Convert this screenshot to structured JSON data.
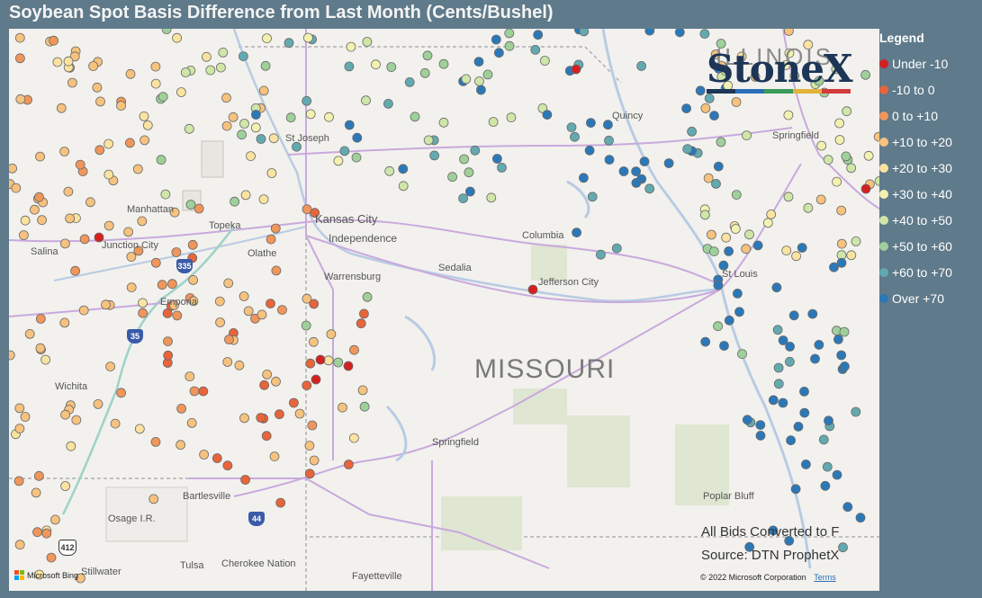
{
  "title": "Soybean Spot Basis Difference from Last Month (Cents/Bushel)",
  "legend": {
    "title": "Legend",
    "items": [
      {
        "label": "Under -10",
        "color": "#d62020"
      },
      {
        "label": "-10 to 0",
        "color": "#e8643a"
      },
      {
        "label": "0 to +10",
        "color": "#f0965a"
      },
      {
        "label": "+10 to +20",
        "color": "#f6c27e"
      },
      {
        "label": "+20 to +30",
        "color": "#fae3a0"
      },
      {
        "label": "+30 to +40",
        "color": "#f3f1b0"
      },
      {
        "label": "+40 to +50",
        "color": "#cfe6a8"
      },
      {
        "label": "+50 to +60",
        "color": "#9fd09a"
      },
      {
        "label": "+60 to +70",
        "color": "#62aab0"
      },
      {
        "label": "Over +70",
        "color": "#2b78b8"
      }
    ]
  },
  "logo": {
    "text": "StoneX",
    "overlay_text": "ILLINOIS"
  },
  "map": {
    "state_label": "MISSOURI",
    "cities": {
      "st_joseph": "St Joseph",
      "manhattan": "Manhattan",
      "topeka": "Topeka",
      "kansas_city": "Kansas City",
      "independence": "Independence",
      "junction_city": "Junction City",
      "salina": "Salina",
      "olathe": "Olathe",
      "emporia": "Emporia",
      "warrensburg": "Warrensburg",
      "sedalia": "Sedalia",
      "columbia": "Columbia",
      "jefferson_city": "Jefferson City",
      "st_louis": "St Louis",
      "springfield_il": "Springfield",
      "quincy": "Quincy",
      "wichita": "Wichita",
      "springfield_mo": "Springfield",
      "bartlesville": "Bartlesville",
      "osage": "Osage I.R.",
      "tulsa": "Tulsa",
      "cherokee": "Cherokee Nation",
      "stillwater": "Stillwater",
      "fayetteville": "Fayetteville",
      "poplar_bluff": "Poplar Bluff"
    },
    "shields": {
      "i335": "335",
      "i35": "35",
      "i44": "44",
      "us412": "412"
    },
    "note_line1": "All Bids Converted to F",
    "note_line2": "Source: DTN ProphetX",
    "copyright": "© 2022 Microsoft Corporation",
    "terms": "Terms",
    "bing": "Microsoft Bing"
  }
}
